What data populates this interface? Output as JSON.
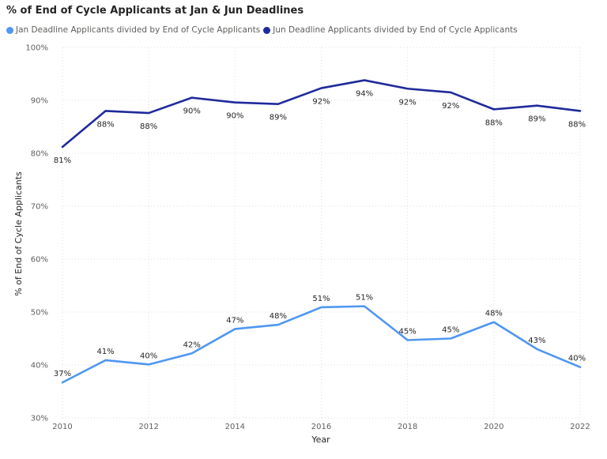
{
  "title": "% of End of Cycle Applicants at Jan & Jun Deadlines",
  "legend": [
    {
      "label": "Jan Deadline Applicants divided by End of Cycle Applicants",
      "color": "#4f97f2"
    },
    {
      "label": "Jun Deadline Applicants divided by End of Cycle Applicants",
      "color": "#1f2a9b"
    }
  ],
  "chart_data": {
    "type": "line",
    "title": "% of End of Cycle Applicants at Jan & Jun Deadlines",
    "xlabel": "Year",
    "ylabel": "% of End of Cycle Applicants",
    "x": [
      2010,
      2011,
      2012,
      2013,
      2014,
      2015,
      2016,
      2017,
      2018,
      2019,
      2020,
      2021,
      2022
    ],
    "x_ticks": [
      "2010",
      "2012",
      "2014",
      "2016",
      "2018",
      "2020",
      "2022"
    ],
    "xlim": [
      2010,
      2022
    ],
    "ylim": [
      30,
      100
    ],
    "y_ticks": [
      "30%",
      "40%",
      "50%",
      "60%",
      "70%",
      "80%",
      "90%",
      "100%"
    ],
    "grid": true,
    "legend_position": "top-left",
    "series": [
      {
        "name": "Jan Deadline Applicants divided by End of Cycle Applicants",
        "color": "#4f97f2",
        "values": [
          36.7,
          40.9,
          40.1,
          42.2,
          46.8,
          47.6,
          50.9,
          51.1,
          44.7,
          45.0,
          48.1,
          43.0,
          39.6
        ],
        "labels": [
          "37%",
          "41%",
          "40%",
          "42%",
          "47%",
          "48%",
          "51%",
          "51%",
          "45%",
          "45%",
          "48%",
          "43%",
          "40%"
        ]
      },
      {
        "name": "Jun Deadline Applicants divided by End of Cycle Applicants",
        "color": "#1f2a9b",
        "values": [
          81.2,
          88.0,
          87.6,
          90.5,
          89.6,
          89.3,
          92.3,
          93.8,
          92.2,
          91.5,
          88.3,
          89.0,
          88.0
        ],
        "labels": [
          "81%",
          "88%",
          "88%",
          "90%",
          "90%",
          "89%",
          "92%",
          "94%",
          "92%",
          "92%",
          "88%",
          "89%",
          "88%"
        ]
      }
    ]
  }
}
